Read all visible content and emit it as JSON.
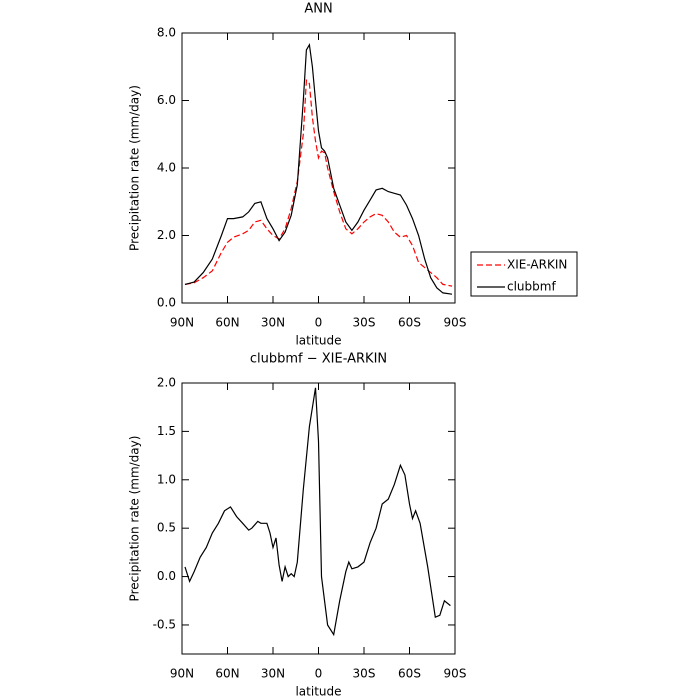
{
  "chart_data": [
    {
      "type": "line",
      "title": "ANN",
      "xlabel": "latitude",
      "ylabel": "Precipitation rate (mm/day)",
      "x": [
        88,
        82,
        76,
        70,
        64,
        60,
        56,
        50,
        46,
        42,
        38,
        34,
        30,
        26,
        22,
        18,
        14,
        10,
        8,
        6,
        4,
        2,
        0,
        -2,
        -4,
        -6,
        -10,
        -14,
        -18,
        -22,
        -26,
        -30,
        -34,
        -38,
        -42,
        -46,
        -50,
        -54,
        -58,
        -62,
        -66,
        -70,
        -74,
        -78,
        -82,
        -88
      ],
      "series": [
        {
          "name": "XIE-ARKIN",
          "color": "#ff0000",
          "linestyle": "dashed",
          "values": [
            0.55,
            0.6,
            0.75,
            0.95,
            1.5,
            1.8,
            1.95,
            2.05,
            2.15,
            2.4,
            2.45,
            2.2,
            2.0,
            1.9,
            2.2,
            2.8,
            3.6,
            5.0,
            6.6,
            6.5,
            5.5,
            4.8,
            4.3,
            4.5,
            4.45,
            4.0,
            3.3,
            2.7,
            2.2,
            2.05,
            2.2,
            2.4,
            2.55,
            2.65,
            2.6,
            2.4,
            2.1,
            1.95,
            2.0,
            1.7,
            1.2,
            1.05,
            0.9,
            0.75,
            0.55,
            0.5
          ]
        },
        {
          "name": "clubbmf",
          "color": "#000000",
          "linestyle": "solid",
          "values": [
            0.55,
            0.62,
            0.9,
            1.3,
            2.0,
            2.5,
            2.5,
            2.55,
            2.7,
            2.95,
            3.0,
            2.5,
            2.2,
            1.85,
            2.1,
            2.6,
            3.5,
            6.0,
            7.5,
            7.65,
            7.0,
            6.0,
            5.1,
            4.6,
            4.5,
            4.3,
            3.4,
            2.9,
            2.4,
            2.15,
            2.4,
            2.75,
            3.05,
            3.35,
            3.4,
            3.3,
            3.25,
            3.2,
            2.9,
            2.5,
            2.0,
            1.3,
            0.75,
            0.45,
            0.3,
            0.26
          ]
        }
      ],
      "xlim": [
        90,
        -90
      ],
      "xticks": [
        {
          "value": 90,
          "label": "90N"
        },
        {
          "value": 60,
          "label": "60N"
        },
        {
          "value": 30,
          "label": "30N"
        },
        0,
        {
          "value": -30,
          "label": "30S"
        },
        {
          "value": -60,
          "label": "60S"
        },
        {
          "value": -90,
          "label": "90S"
        }
      ],
      "ylim": [
        0,
        8
      ],
      "yticks": [
        {
          "value": 0,
          "label": "0.0"
        },
        {
          "value": 2,
          "label": "2.0"
        },
        {
          "value": 4,
          "label": "4.0"
        },
        {
          "value": 6,
          "label": "6.0"
        },
        {
          "value": 8,
          "label": "8.0"
        }
      ],
      "legend": "right"
    },
    {
      "type": "line",
      "title": "clubbmf − XIE-ARKIN",
      "xlabel": "latitude",
      "ylabel": "Precipitation rate (mm/day)",
      "x": [
        88,
        85,
        82,
        78,
        74,
        70,
        66,
        62,
        58,
        54,
        50,
        46,
        44,
        40,
        38,
        34,
        32,
        30,
        28,
        26,
        24,
        22,
        20,
        18,
        16,
        14,
        10,
        6,
        2,
        0,
        -2,
        -6,
        -10,
        -14,
        -18,
        -20,
        -22,
        -26,
        -30,
        -34,
        -38,
        -42,
        -46,
        -50,
        -54,
        -57,
        -60,
        -62,
        -64,
        -67,
        -72,
        -77,
        -80,
        -83,
        -87
      ],
      "series": [
        {
          "color": "#000000",
          "linestyle": "solid",
          "values": [
            0.1,
            -0.05,
            0.05,
            0.2,
            0.3,
            0.45,
            0.55,
            0.68,
            0.72,
            0.62,
            0.55,
            0.48,
            0.5,
            0.57,
            0.55,
            0.55,
            0.45,
            0.3,
            0.4,
            0.12,
            -0.05,
            0.1,
            0.0,
            0.03,
            0.0,
            0.15,
            0.9,
            1.55,
            1.95,
            1.4,
            0.0,
            -0.5,
            -0.6,
            -0.25,
            0.05,
            0.15,
            0.08,
            0.1,
            0.15,
            0.35,
            0.5,
            0.75,
            0.8,
            0.95,
            1.15,
            1.05,
            0.75,
            0.6,
            0.68,
            0.55,
            0.1,
            -0.42,
            -0.4,
            -0.25,
            -0.3
          ]
        }
      ],
      "xlim": [
        90,
        -90
      ],
      "xticks": [
        {
          "value": 90,
          "label": "90N"
        },
        {
          "value": 60,
          "label": "60N"
        },
        {
          "value": 30,
          "label": "30N"
        },
        0,
        {
          "value": -30,
          "label": "30S"
        },
        {
          "value": -60,
          "label": "60S"
        },
        {
          "value": -90,
          "label": "90S"
        }
      ],
      "ylim": [
        -0.8,
        2.0
      ],
      "yticks": [
        -0.5,
        {
          "value": 0,
          "label": "0.0"
        },
        0.5,
        {
          "value": 1,
          "label": "1.0"
        },
        1.5,
        {
          "value": 2,
          "label": "2.0"
        }
      ]
    }
  ]
}
